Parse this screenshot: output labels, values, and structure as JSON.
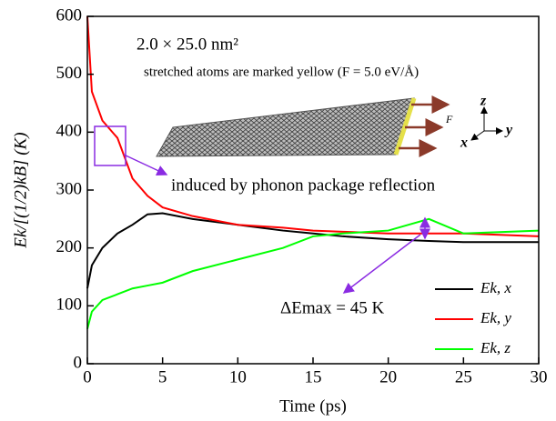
{
  "chart_data": {
    "type": "line",
    "xlabel": "Time (ps)",
    "ylabel": "Ek/[(1/2)kB] (K)",
    "x": [
      0,
      0.3,
      1,
      2,
      3,
      4,
      5,
      7,
      10,
      13,
      15,
      17,
      20,
      22.7,
      25,
      30
    ],
    "series": [
      {
        "name": "Ek, x",
        "color": "#000000",
        "values": [
          130,
          170,
          200,
          225,
          240,
          258,
          260,
          250,
          240,
          230,
          225,
          220,
          215,
          212,
          210,
          210
        ]
      },
      {
        "name": "Ek, y",
        "color": "#ff0000",
        "values": [
          600,
          470,
          420,
          390,
          320,
          290,
          270,
          255,
          240,
          235,
          230,
          228,
          225,
          225,
          225,
          220
        ]
      },
      {
        "name": "Ek, z",
        "color": "#00ff00",
        "values": [
          60,
          90,
          110,
          120,
          130,
          135,
          140,
          160,
          180,
          200,
          220,
          225,
          230,
          250,
          225,
          230
        ]
      }
    ],
    "xlim": [
      0,
      30
    ],
    "xticks": [
      0,
      5,
      10,
      15,
      20,
      25,
      30
    ],
    "ylim": [
      0,
      600
    ],
    "yticks": [
      0,
      100,
      200,
      300,
      400,
      500,
      600
    ],
    "legend": "lower right",
    "annotations": {
      "size": "2.0 × 25.0 nm²",
      "stretch": "stretched atoms are marked yellow (F = 5.0 eV/Å)",
      "reflection": "induced by phonon package reflection",
      "delta": "ΔEmax = 45 K",
      "force": "F",
      "axis_z": "z",
      "axis_y": "y",
      "axis_x": "x"
    }
  }
}
